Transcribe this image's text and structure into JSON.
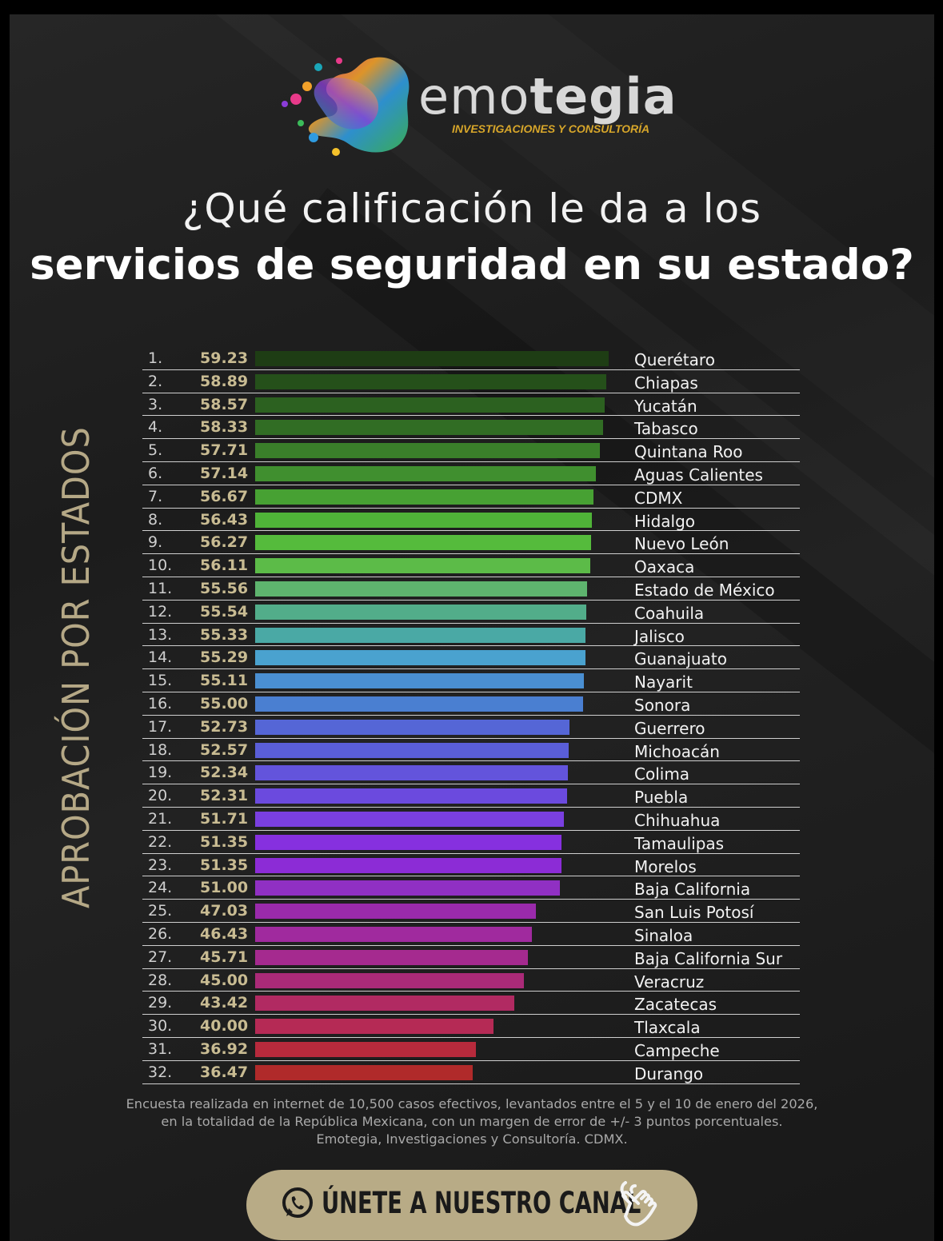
{
  "brand": {
    "name_light": "emo",
    "name_bold": "tegia",
    "tagline": "INVESTIGACIONES Y CONSULTORÍA"
  },
  "title": {
    "line1": "¿Qué calificación le da a los",
    "line2": "servicios de seguridad en su estado?"
  },
  "chart_data": {
    "type": "bar",
    "orientation": "horizontal",
    "title": "¿Qué calificación le da a los servicios de seguridad en su estado?",
    "ylabel": "APROBACIÓN POR ESTADOS",
    "ranks": [
      "1.",
      "2.",
      "3.",
      "4.",
      "5.",
      "6.",
      "7.",
      "8.",
      "9.",
      "10.",
      "11.",
      "12.",
      "13.",
      "14.",
      "15.",
      "16.",
      "17.",
      "18.",
      "19.",
      "20.",
      "21.",
      "22.",
      "23.",
      "24.",
      "25.",
      "26.",
      "27.",
      "28.",
      "29.",
      "30.",
      "31.",
      "32."
    ],
    "categories": [
      "Querétaro",
      "Chiapas",
      "Yucatán",
      "Tabasco",
      "Quintana Roo",
      "Aguas Calientes",
      "CDMX",
      "Hidalgo",
      "Nuevo León",
      "Oaxaca",
      "Estado de México",
      "Coahuila",
      "Jalisco",
      "Guanajuato",
      "Nayarit",
      "Sonora",
      "Guerrero",
      "Michoacán",
      "Colima",
      "Puebla",
      "Chihuahua",
      "Tamaulipas",
      "Morelos",
      "Baja California",
      "San Luis Potosí",
      "Sinaloa",
      "Baja California Sur",
      "Veracruz",
      "Zacatecas",
      "Tlaxcala",
      "Campeche",
      "Durango"
    ],
    "values": [
      59.23,
      58.89,
      58.57,
      58.33,
      57.71,
      57.14,
      56.67,
      56.43,
      56.27,
      56.11,
      55.56,
      55.54,
      55.33,
      55.29,
      55.11,
      55.0,
      52.73,
      52.57,
      52.34,
      52.31,
      51.71,
      51.35,
      51.35,
      51.0,
      47.03,
      46.43,
      45.71,
      45.0,
      43.42,
      40.0,
      36.92,
      36.47
    ],
    "value_labels": [
      "59.23",
      "58.89",
      "58.57",
      "58.33",
      "57.71",
      "57.14",
      "56.67",
      "56.43",
      "56.27",
      "56.11",
      "55.56",
      "55.54",
      "55.33",
      "55.29",
      "55.11",
      "55.00",
      "52.73",
      "52.57",
      "52.34",
      "52.31",
      "51.71",
      "51.35",
      "51.35",
      "51.00",
      "47.03",
      "46.43",
      "45.71",
      "45.00",
      "43.42",
      "40.00",
      "36.92",
      "36.47"
    ],
    "colors": [
      "#1e3d14",
      "#25501a",
      "#2c6120",
      "#316d24",
      "#3a7f2a",
      "#408f2f",
      "#47a133",
      "#4fb338",
      "#55bb3c",
      "#5cbb48",
      "#5eb46e",
      "#52ad8a",
      "#4aa9a5",
      "#4aa2cf",
      "#4a8fd2",
      "#4a7fd1",
      "#5566d6",
      "#5a5ed8",
      "#6354dc",
      "#6b4ade",
      "#7a3fe0",
      "#8630df",
      "#8c2cd6",
      "#9030c3",
      "#9a2aab",
      "#a02a9e",
      "#a52a8f",
      "#aa2a78",
      "#b12a62",
      "#b52a55",
      "#b72a3c",
      "#b02a2a"
    ],
    "xlim": [
      0,
      60
    ]
  },
  "footnote": {
    "line1": "Encuesta realizada en internet de 10,500 casos efectivos, levantados entre el 5 y el 10 de enero del 2026,",
    "line2": "en la totalidad de la República Mexicana, con un margen de error de +/- 3 puntos porcentuales.",
    "line3": "Emotegia, Investigaciones y Consultoría. CDMX."
  },
  "cta": {
    "label": "ÚNETE A NUESTRO CANAL",
    "icon": "whatsapp-icon",
    "hand_icon": "pointing-hand-icon",
    "background": "#b8ab86"
  }
}
